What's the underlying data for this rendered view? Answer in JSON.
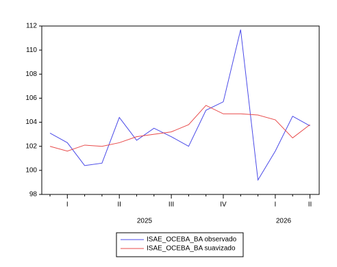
{
  "chart_data": {
    "type": "line",
    "categories": [
      null,
      "I",
      null,
      null,
      "II",
      null,
      null,
      "III",
      null,
      null,
      "IV",
      null,
      null,
      "I",
      null,
      "II"
    ],
    "year_labels": [
      "2025",
      "2026"
    ],
    "series": [
      {
        "name": "ISAE_OCEBA_BA observado",
        "color": "#4a4ae8",
        "values": [
          103.1,
          102.3,
          100.4,
          100.6,
          104.4,
          102.5,
          103.5,
          102.8,
          102.0,
          105.0,
          105.7,
          111.7,
          99.2,
          101.6,
          104.5,
          103.7
        ]
      },
      {
        "name": "ISAE_OCEBA_BA suavizado",
        "color": "#e84a4a",
        "values": [
          102.0,
          101.6,
          102.1,
          102.0,
          102.3,
          102.8,
          103.0,
          103.2,
          103.8,
          105.4,
          104.7,
          104.7,
          104.6,
          104.2,
          102.7,
          103.8
        ]
      }
    ],
    "ylim": [
      98,
      112
    ],
    "yticks": [
      98,
      100,
      102,
      104,
      106,
      108,
      110,
      112
    ]
  }
}
